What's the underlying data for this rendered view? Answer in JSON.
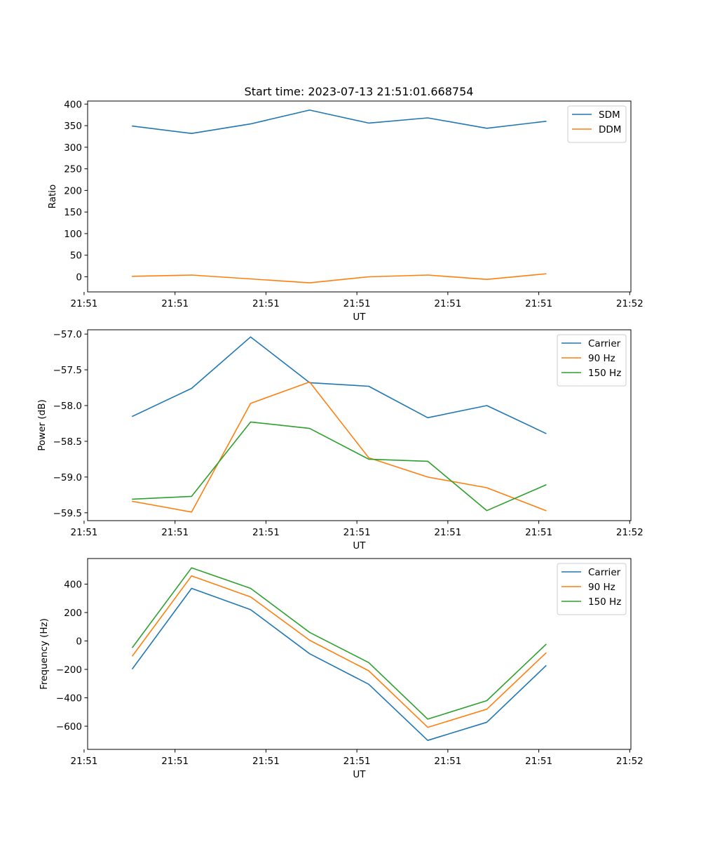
{
  "figure_title": "Start time: 2023-07-13 21:51:01.668754",
  "colors": {
    "blue": "#1f77b4",
    "orange": "#ff7f0e",
    "green": "#2ca02c"
  },
  "chart_data": [
    {
      "type": "line",
      "title": "Start time: 2023-07-13 21:51:01.668754",
      "xlabel": "UT",
      "ylabel": "Ratio",
      "x": [
        1,
        2,
        3,
        4,
        5,
        6,
        7,
        8
      ],
      "xlim": [
        0.24,
        9.44
      ],
      "ylim": [
        -35,
        407
      ],
      "x_tick_positions": [
        0.18,
        1.72,
        3.26,
        4.8,
        6.34,
        7.88,
        9.42
      ],
      "x_tick_labels": [
        "21:51",
        "21:51",
        "21:51",
        "21:51",
        "21:51",
        "21:51",
        "21:52"
      ],
      "y_ticks": [
        0,
        50,
        100,
        150,
        200,
        250,
        300,
        350,
        400
      ],
      "y_tick_labels": [
        "0",
        "50",
        "100",
        "150",
        "200",
        "250",
        "300",
        "350",
        "400"
      ],
      "legend": "top-right",
      "series": [
        {
          "name": "SDM",
          "color": "#1f77b4",
          "values": [
            349,
            332,
            354,
            386,
            356,
            368,
            344,
            360
          ]
        },
        {
          "name": "DDM",
          "color": "#ff7f0e",
          "values": [
            1,
            4,
            -5,
            -14,
            0,
            4,
            -6,
            7
          ]
        }
      ]
    },
    {
      "type": "line",
      "title": "",
      "xlabel": "UT",
      "ylabel": "Power (dB)",
      "x": [
        1,
        2,
        3,
        4,
        5,
        6,
        7,
        8
      ],
      "xlim": [
        0.24,
        9.44
      ],
      "ylim": [
        -59.61,
        -56.94
      ],
      "x_tick_positions": [
        0.18,
        1.72,
        3.26,
        4.8,
        6.34,
        7.88,
        9.42
      ],
      "x_tick_labels": [
        "21:51",
        "21:51",
        "21:51",
        "21:51",
        "21:51",
        "21:51",
        "21:52"
      ],
      "y_ticks": [
        -59.5,
        -59.0,
        -58.5,
        -58.0,
        -57.5,
        -57.0
      ],
      "y_tick_labels": [
        "−59.5",
        "−59.0",
        "−58.5",
        "−58.0",
        "−57.5",
        "−57.0"
      ],
      "legend": "top-right",
      "series": [
        {
          "name": "Carrier",
          "color": "#1f77b4",
          "values": [
            -58.15,
            -57.76,
            -57.04,
            -57.68,
            -57.73,
            -58.17,
            -58.0,
            -58.39
          ]
        },
        {
          "name": "90 Hz",
          "color": "#ff7f0e",
          "values": [
            -59.34,
            -59.49,
            -57.97,
            -57.67,
            -58.73,
            -59.0,
            -59.15,
            -59.47
          ]
        },
        {
          "name": "150 Hz",
          "color": "#2ca02c",
          "values": [
            -59.31,
            -59.27,
            -58.23,
            -58.32,
            -58.75,
            -58.78,
            -59.47,
            -59.11
          ]
        }
      ]
    },
    {
      "type": "line",
      "title": "",
      "xlabel": "UT",
      "ylabel": "Frequency (Hz)",
      "x": [
        1,
        2,
        3,
        4,
        5,
        6,
        7,
        8
      ],
      "xlim": [
        0.24,
        9.44
      ],
      "ylim": [
        -763,
        580
      ],
      "x_tick_positions": [
        0.18,
        1.72,
        3.26,
        4.8,
        6.34,
        7.88,
        9.42
      ],
      "x_tick_labels": [
        "21:51",
        "21:51",
        "21:51",
        "21:51",
        "21:51",
        "21:51",
        "21:52"
      ],
      "y_ticks": [
        -600,
        -400,
        -200,
        0,
        200,
        400
      ],
      "y_tick_labels": [
        "−600",
        "−400",
        "−200",
        "0",
        "200",
        "400"
      ],
      "legend": "top-right",
      "series": [
        {
          "name": "Carrier",
          "color": "#1f77b4",
          "values": [
            -195,
            370,
            220,
            -90,
            -305,
            -700,
            -572,
            -175
          ]
        },
        {
          "name": "90 Hz",
          "color": "#ff7f0e",
          "values": [
            -105,
            458,
            310,
            5,
            -210,
            -608,
            -480,
            -85
          ]
        },
        {
          "name": "150 Hz",
          "color": "#2ca02c",
          "values": [
            -45,
            515,
            370,
            60,
            -152,
            -550,
            -420,
            -25
          ]
        }
      ]
    }
  ]
}
